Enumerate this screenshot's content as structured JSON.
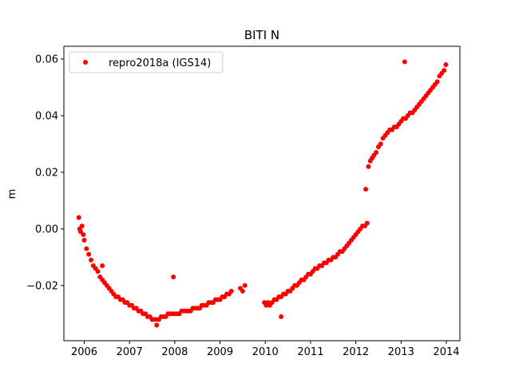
{
  "chart_data": {
    "type": "scatter",
    "title": "BITI N",
    "xlabel": "",
    "ylabel": "m",
    "xlim": [
      2005.55,
      2014.3
    ],
    "ylim": [
      -0.0395,
      0.0645
    ],
    "xticks": [
      2006,
      2007,
      2008,
      2009,
      2010,
      2011,
      2012,
      2013,
      2014
    ],
    "xtick_labels": [
      "2006",
      "2007",
      "2008",
      "2009",
      "2010",
      "2011",
      "2012",
      "2013",
      "2014"
    ],
    "yticks": [
      -0.02,
      0.0,
      0.02,
      0.04,
      0.06
    ],
    "ytick_labels": [
      "−0.02",
      "0.00",
      "0.02",
      "0.04",
      "0.06"
    ],
    "grid": false,
    "legend_position": "top-left",
    "marker_color": "#ff0000",
    "series": [
      {
        "name": "repro2018a (IGS14)",
        "marker": "circle",
        "color": "#ff0000",
        "x": [
          2005.88,
          2005.9,
          2005.92,
          2005.95,
          2005.98,
          2006.0,
          2006.05,
          2006.1,
          2006.15,
          2006.2,
          2006.25,
          2006.3,
          2006.35,
          2006.4,
          2006.45,
          2006.5,
          2006.55,
          2006.6,
          2006.65,
          2006.7,
          2006.75,
          2006.8,
          2006.85,
          2006.9,
          2006.95,
          2007.0,
          2007.05,
          2007.1,
          2007.15,
          2007.2,
          2007.25,
          2007.3,
          2007.35,
          2007.4,
          2007.45,
          2007.5,
          2007.55,
          2007.6,
          2007.65,
          2007.7,
          2007.75,
          2007.8,
          2007.85,
          2007.9,
          2007.95,
          2008.0,
          2008.05,
          2008.1,
          2008.15,
          2008.2,
          2008.25,
          2008.3,
          2008.35,
          2008.4,
          2008.45,
          2008.5,
          2008.55,
          2008.6,
          2008.65,
          2008.7,
          2008.75,
          2008.8,
          2008.85,
          2008.9,
          2008.95,
          2009.0,
          2009.05,
          2009.1,
          2009.15,
          2009.2,
          2009.25,
          2009.45,
          2009.5,
          2009.55,
          2009.98,
          2010.02,
          2010.06,
          2010.1,
          2010.15,
          2010.2,
          2010.25,
          2010.3,
          2010.35,
          2010.4,
          2010.45,
          2010.5,
          2010.55,
          2010.6,
          2010.65,
          2010.7,
          2010.75,
          2010.8,
          2010.85,
          2010.9,
          2010.95,
          2011.0,
          2011.05,
          2011.1,
          2011.15,
          2011.2,
          2011.25,
          2011.3,
          2011.35,
          2011.4,
          2011.45,
          2011.5,
          2011.55,
          2011.6,
          2011.65,
          2011.7,
          2011.75,
          2011.8,
          2011.85,
          2011.9,
          2011.95,
          2012.0,
          2012.05,
          2012.1,
          2012.15,
          2012.2,
          2012.25,
          2012.28,
          2012.32,
          2012.36,
          2012.4,
          2012.45,
          2012.5,
          2012.55,
          2012.6,
          2012.65,
          2012.7,
          2012.75,
          2012.8,
          2012.85,
          2012.9,
          2012.95,
          2013.0,
          2013.05,
          2013.1,
          2013.15,
          2013.2,
          2013.25,
          2013.3,
          2013.35,
          2013.4,
          2013.45,
          2013.5,
          2013.55,
          2013.6,
          2013.65,
          2013.7,
          2013.75,
          2013.8,
          2013.85,
          2013.9,
          2013.95,
          2013.99,
          2007.97,
          2013.08,
          2012.22,
          2010.35,
          2006.4,
          2007.6
        ],
        "y": [
          0.004,
          0.0,
          -0.001,
          0.001,
          -0.002,
          -0.004,
          -0.007,
          -0.009,
          -0.011,
          -0.013,
          -0.014,
          -0.015,
          -0.017,
          -0.018,
          -0.019,
          -0.02,
          -0.021,
          -0.022,
          -0.023,
          -0.024,
          -0.024,
          -0.025,
          -0.025,
          -0.026,
          -0.026,
          -0.027,
          -0.027,
          -0.028,
          -0.028,
          -0.029,
          -0.029,
          -0.03,
          -0.03,
          -0.031,
          -0.031,
          -0.032,
          -0.032,
          -0.032,
          -0.032,
          -0.031,
          -0.031,
          -0.031,
          -0.03,
          -0.03,
          -0.03,
          -0.03,
          -0.03,
          -0.03,
          -0.029,
          -0.029,
          -0.029,
          -0.029,
          -0.029,
          -0.028,
          -0.028,
          -0.028,
          -0.028,
          -0.027,
          -0.027,
          -0.027,
          -0.026,
          -0.026,
          -0.026,
          -0.025,
          -0.025,
          -0.025,
          -0.024,
          -0.024,
          -0.023,
          -0.023,
          -0.022,
          -0.021,
          -0.022,
          -0.02,
          -0.026,
          -0.027,
          -0.026,
          -0.027,
          -0.026,
          -0.025,
          -0.025,
          -0.024,
          -0.024,
          -0.023,
          -0.023,
          -0.022,
          -0.022,
          -0.021,
          -0.02,
          -0.02,
          -0.019,
          -0.018,
          -0.018,
          -0.017,
          -0.016,
          -0.016,
          -0.015,
          -0.014,
          -0.014,
          -0.013,
          -0.013,
          -0.012,
          -0.012,
          -0.011,
          -0.011,
          -0.01,
          -0.01,
          -0.009,
          -0.008,
          -0.008,
          -0.007,
          -0.006,
          -0.005,
          -0.004,
          -0.003,
          -0.002,
          -0.001,
          0.0,
          0.001,
          0.001,
          0.002,
          0.022,
          0.024,
          0.025,
          0.026,
          0.027,
          0.029,
          0.03,
          0.032,
          0.033,
          0.034,
          0.035,
          0.035,
          0.036,
          0.036,
          0.037,
          0.038,
          0.039,
          0.039,
          0.04,
          0.041,
          0.041,
          0.042,
          0.043,
          0.044,
          0.045,
          0.046,
          0.047,
          0.048,
          0.049,
          0.05,
          0.051,
          0.052,
          0.054,
          0.055,
          0.056,
          0.058,
          -0.017,
          0.059,
          0.014,
          -0.031,
          -0.013,
          -0.034
        ]
      }
    ]
  }
}
